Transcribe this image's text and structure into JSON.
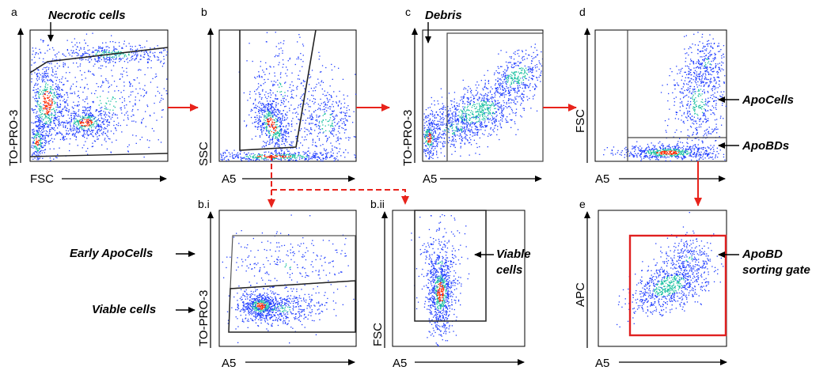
{
  "colors": {
    "flow_arrow": "#e8231b",
    "gate_line": "#222222",
    "sorting_gate": "#e02020",
    "density_low": "#1e3cff",
    "density_mid": "#19c0a0",
    "density_high": "#ff2a00"
  },
  "panels": [
    {
      "id": "a",
      "label": "a",
      "xlabel": "FSC",
      "ylabel": "TO-PRO-3"
    },
    {
      "id": "b",
      "label": "b",
      "xlabel": "A5",
      "ylabel": "SSC"
    },
    {
      "id": "c",
      "label": "c",
      "xlabel": "A5",
      "ylabel": "TO-PRO-3"
    },
    {
      "id": "d",
      "label": "d",
      "xlabel": "A5",
      "ylabel": "FSC"
    },
    {
      "id": "bi",
      "label": "b.i",
      "xlabel": "A5",
      "ylabel": "TO-PRO-3"
    },
    {
      "id": "bii",
      "label": "b.ii",
      "xlabel": "A5",
      "ylabel": "FSC"
    },
    {
      "id": "e",
      "label": "e",
      "xlabel": "A5",
      "ylabel": "APC"
    }
  ],
  "annotations": {
    "necrotic": "Necrotic cells",
    "debris": "Debris",
    "apocells": "ApoCells",
    "apobds": "ApoBDs",
    "early_apocells": "Early ApoCells",
    "viable_cells_bi": "Viable cells",
    "viable_bii_line1": "Viable",
    "viable_bii_line2": "cells",
    "apobd_gate_line1": "ApoBD",
    "apobd_gate_line2": "sorting gate"
  }
}
